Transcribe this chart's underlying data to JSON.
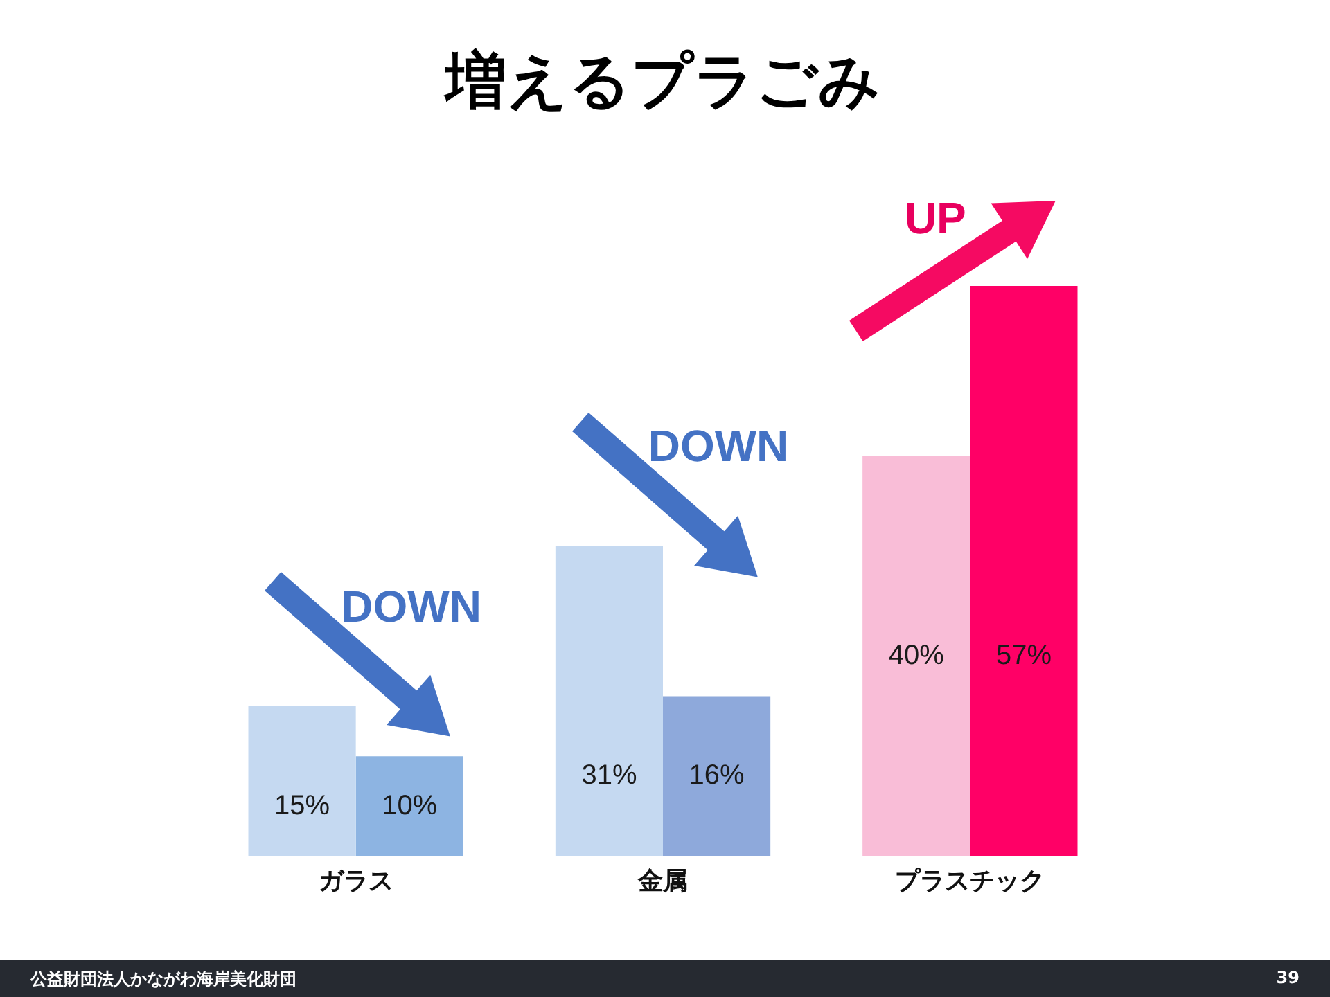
{
  "chart_data": {
    "type": "bar",
    "title": "増えるプラごみ",
    "categories": [
      "ガラス",
      "金属",
      "プラスチック"
    ],
    "series": [
      {
        "colors": [
          "#c5d9f1",
          "#c5d9f1",
          "#f9bdd7"
        ],
        "values": [
          15,
          31,
          40
        ],
        "value_labels": [
          "15%",
          "31%",
          "40%"
        ]
      },
      {
        "colors": [
          "#8db4e2",
          "#8ea9db",
          "#ff0066"
        ],
        "values": [
          10,
          16,
          57
        ],
        "value_labels": [
          "10%",
          "16%",
          "57%"
        ]
      }
    ],
    "annotations": [
      "DOWN",
      "DOWN",
      "UP",
      "公益財団法人かながわ海岸美化財団",
      "39"
    ],
    "tick_labels": "x"
  }
}
